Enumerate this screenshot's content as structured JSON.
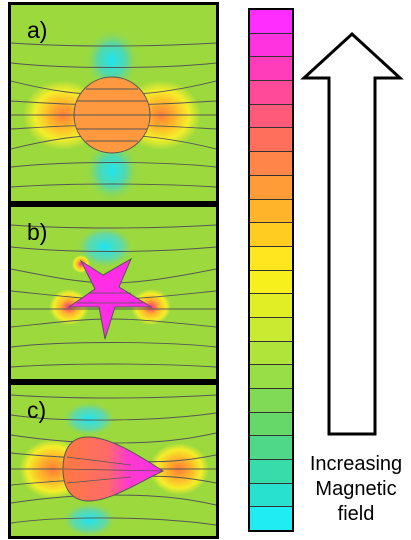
{
  "panels": [
    {
      "label": "a)"
    },
    {
      "label": "b)"
    },
    {
      "label": "c)"
    }
  ],
  "colorbar": {
    "colors": [
      "#ff2eff",
      "#ff33e0",
      "#ff3dba",
      "#ff4a9a",
      "#ff5a7a",
      "#ff6f5c",
      "#ff8548",
      "#ff9c38",
      "#ffb42a",
      "#ffcc22",
      "#ffe61e",
      "#f7f01c",
      "#e2ee25",
      "#c9ea30",
      "#b0e43a",
      "#98de46",
      "#80da55",
      "#66d86a",
      "#4ed888",
      "#38dcab",
      "#28e2cf",
      "#20ecf4"
    ]
  },
  "arrow": {
    "caption_lines": [
      "Increasing",
      "Magnetic",
      "field"
    ]
  },
  "palette": {
    "field_green": "#9cd93d",
    "object_orange": "#ff9940",
    "magenta": "#ff2ee6",
    "cyan": "#38e0e8",
    "yellow": "#f4ee2a",
    "red_tip": "#ff3355"
  }
}
